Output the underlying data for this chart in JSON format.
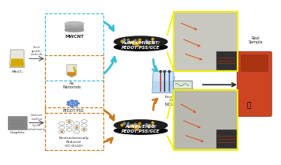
{
  "background_color": "#ffffff",
  "top_electrode_text": "AuNRs/MWCNT/\nPEDOT:PSS/GCE",
  "bottom_electrode_text": "AuNRs/ErGO/\nPEDOT:PSS/GCE",
  "center_text": "Electrochemical\nDetection",
  "nitrite_text": "NO₂⁻ → NO₃⁻",
  "real_sample_text": "Real\nSample",
  "mwcnt_label": "MWCNT",
  "au_nanorods_label": "Au\nNanorods",
  "pedot_label": "PEDOT:PSS",
  "ergo_label": "Electrochemically\nReduced\nGO (ErGO)",
  "haucl_label": "HAuCl₄",
  "seed_label": "Seed-\ngrowth\nmethods",
  "graphite_label": "Graphite",
  "hummer_label": "Hummer\nmethod",
  "cv_label": "Cyclic\nvoltammetry",
  "arrow_color_top": "#3bbdd4",
  "arrow_color_bottom": "#c87820",
  "box_color_top": "#3bbdd4",
  "box_color_bottom": "#c87820",
  "highlight_box_color": "#f0f000",
  "orange_arrow_color": "#e05010",
  "microscopy_bg_top": "#c8c8c0",
  "microscopy_bg_bot": "#b8b8b0",
  "inset_bg": "#303030",
  "puck_face": "#1a1a1a",
  "puck_side": "#101010"
}
